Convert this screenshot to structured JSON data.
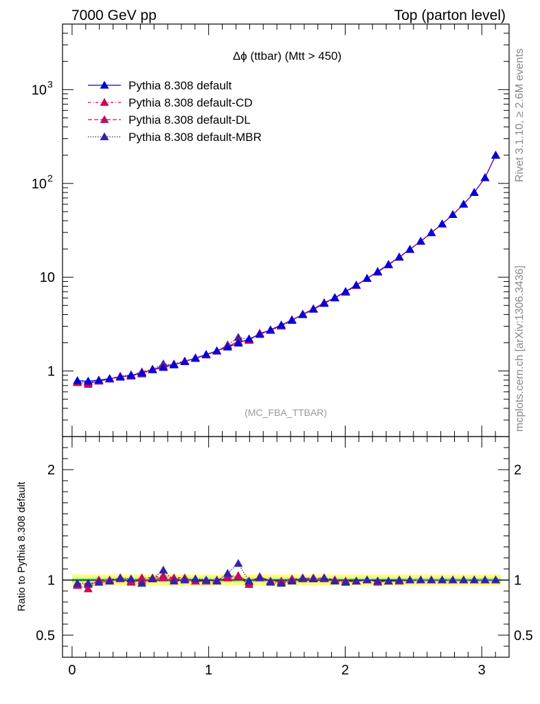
{
  "header": {
    "left": "7000 GeV pp",
    "right": "Top (parton level)"
  },
  "side_labels": {
    "rivet": "Rivet 3.1.10, ≥ 2.6M events",
    "source": "mcplots.cern.ch [arXiv:1306.3436]"
  },
  "chart_data": [
    {
      "panel": "main",
      "type": "line",
      "title": "Δϕ (ttbar) (Mtt > 450)",
      "watermark": "(MC_FBA_TTBAR)",
      "xlabel": "",
      "ylabel": "",
      "yscale": "log",
      "xlim": [
        -0.07,
        3.2
      ],
      "ylim": [
        0.2,
        5000
      ],
      "ytick_labels": [
        {
          "value": 1,
          "label": "1"
        },
        {
          "value": 10,
          "label": "10"
        },
        {
          "value": 100,
          "label": "10",
          "exp": "2"
        },
        {
          "value": 1000,
          "label": "10",
          "exp": "3"
        }
      ],
      "x": [
        0.039,
        0.118,
        0.196,
        0.275,
        0.353,
        0.432,
        0.511,
        0.589,
        0.668,
        0.746,
        0.825,
        0.903,
        0.982,
        1.06,
        1.139,
        1.217,
        1.296,
        1.374,
        1.453,
        1.532,
        1.61,
        1.689,
        1.767,
        1.846,
        1.924,
        2.003,
        2.081,
        2.16,
        2.238,
        2.317,
        2.396,
        2.474,
        2.553,
        2.631,
        2.71,
        2.788,
        2.867,
        2.945,
        3.024,
        3.102
      ],
      "series": [
        {
          "name": "Pythia 8.308 default",
          "color": "#0000dd",
          "dash": "",
          "values": [
            0.79,
            0.78,
            0.8,
            0.83,
            0.86,
            0.9,
            0.96,
            1.03,
            1.09,
            1.17,
            1.26,
            1.37,
            1.5,
            1.64,
            1.8,
            1.98,
            2.2,
            2.45,
            2.75,
            3.1,
            3.5,
            3.98,
            4.55,
            5.25,
            6.05,
            7.05,
            8.25,
            9.7,
            11.5,
            13.7,
            16.4,
            19.8,
            24.2,
            29.8,
            37.0,
            46.5,
            60.0,
            80.0,
            115.0,
            200.0
          ]
        },
        {
          "name": "Pythia 8.308 default-CD",
          "color": "#cc0055",
          "dash": "4,3,1,3",
          "values": [
            0.75,
            0.72,
            0.8,
            0.83,
            0.88,
            0.89,
            0.98,
            1.05,
            1.13,
            1.19,
            1.28,
            1.36,
            1.49,
            1.63,
            1.84,
            2.03,
            2.12,
            2.52,
            2.73,
            3.05,
            3.5,
            4.02,
            4.6,
            5.35,
            6.07,
            6.92,
            8.2,
            9.7,
            11.4,
            13.5,
            16.3,
            19.8,
            24.2,
            29.8,
            37.0,
            46.5,
            60.0,
            80.0,
            115.0,
            200.0
          ]
        },
        {
          "name": "Pythia 8.308 default-DL",
          "color": "#bb1166",
          "dash": "6,3",
          "values": [
            0.76,
            0.75,
            0.78,
            0.82,
            0.87,
            0.88,
            0.95,
            1.04,
            1.11,
            1.18,
            1.27,
            1.36,
            1.48,
            1.64,
            1.85,
            2.06,
            2.15,
            2.53,
            2.71,
            3.08,
            3.52,
            4.0,
            4.62,
            5.3,
            6.05,
            6.95,
            8.15,
            9.7,
            11.3,
            13.6,
            16.3,
            19.8,
            24.2,
            29.8,
            37.0,
            46.5,
            60.0,
            80.0,
            115.0,
            200.0
          ]
        },
        {
          "name": "Pythia 8.308 default-MBR",
          "color": "#3322aa",
          "dash": "1.5,2",
          "values": [
            0.77,
            0.76,
            0.78,
            0.82,
            0.88,
            0.91,
            0.93,
            1.04,
            1.19,
            1.16,
            1.26,
            1.38,
            1.5,
            1.63,
            1.9,
            2.28,
            2.18,
            2.5,
            2.7,
            3.01,
            3.45,
            4.05,
            4.6,
            5.35,
            6.0,
            6.9,
            8.2,
            9.7,
            11.4,
            13.6,
            16.4,
            19.8,
            24.2,
            29.8,
            37.0,
            46.5,
            60.0,
            80.0,
            115.0,
            200.0
          ]
        }
      ]
    },
    {
      "panel": "ratio",
      "type": "line",
      "ylabel": "Ratio to Pythia 8.308 default",
      "yscale": "linear",
      "xlim": [
        -0.07,
        3.2
      ],
      "ylim": [
        0.3,
        2.3
      ],
      "xticks": [
        0,
        1,
        2,
        3
      ],
      "xtick_labels": [
        "0",
        "1",
        "2",
        "3"
      ],
      "yticks": [
        0.5,
        1,
        2
      ],
      "ytick_labels": [
        "0.5",
        "1",
        "2"
      ],
      "reference": 1,
      "bands": [
        {
          "name": "outer",
          "color": "#ffff77",
          "lo": 0.95,
          "hi": 1.05
        },
        {
          "name": "inner",
          "color": "#99ee99",
          "lo": 0.98,
          "hi": 1.02
        }
      ],
      "series": [
        {
          "name": "Pythia 8.308 default-CD",
          "color": "#cc0055",
          "dash": "4,3,1,3",
          "values": [
            0.95,
            0.92,
            1.0,
            1.0,
            1.02,
            0.99,
            1.02,
            1.02,
            1.04,
            1.02,
            1.02,
            0.99,
            0.99,
            0.99,
            1.02,
            1.03,
            0.96,
            1.03,
            0.99,
            0.98,
            1.0,
            1.01,
            1.01,
            1.02,
            1.0,
            0.98,
            0.99,
            1.0,
            0.99,
            0.99,
            0.99,
            1.0,
            1.0,
            1.0,
            1.0,
            1.0,
            1.0,
            1.0,
            1.0,
            1.0
          ]
        },
        {
          "name": "Pythia 8.308 default-DL",
          "color": "#bb1166",
          "dash": "6,3",
          "values": [
            0.96,
            0.96,
            0.98,
            0.99,
            1.01,
            0.98,
            0.99,
            1.01,
            1.02,
            1.01,
            1.01,
            0.99,
            0.99,
            1.0,
            1.03,
            1.04,
            0.98,
            1.03,
            0.99,
            0.99,
            1.01,
            1.01,
            1.02,
            1.01,
            1.0,
            0.99,
            0.99,
            1.0,
            0.98,
            0.99,
            0.99,
            1.0,
            1.0,
            1.0,
            1.0,
            1.0,
            1.0,
            1.0,
            1.0,
            1.0
          ]
        },
        {
          "name": "Pythia 8.308 default-MBR",
          "color": "#3322aa",
          "dash": "1.5,2",
          "values": [
            0.97,
            0.97,
            0.98,
            0.99,
            1.02,
            1.01,
            0.97,
            1.01,
            1.09,
            0.99,
            1.0,
            1.01,
            1.0,
            0.99,
            1.06,
            1.15,
            0.99,
            1.02,
            0.98,
            0.97,
            0.99,
            1.02,
            1.01,
            1.02,
            0.99,
            0.98,
            0.99,
            1.0,
            0.99,
            0.99,
            1.0,
            1.0,
            1.0,
            1.0,
            1.0,
            1.0,
            1.0,
            1.0,
            1.0,
            1.0
          ]
        }
      ]
    }
  ]
}
